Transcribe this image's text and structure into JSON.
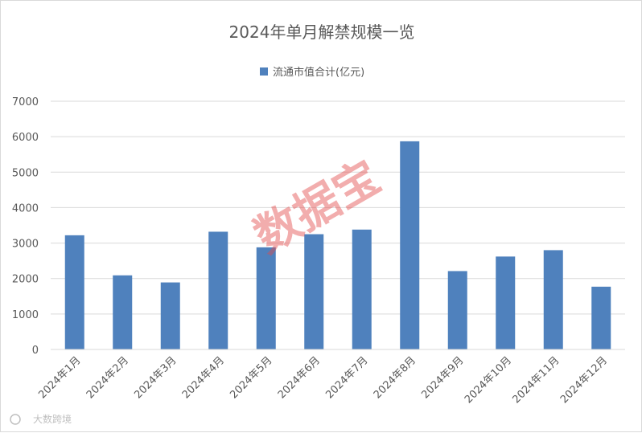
{
  "chart_data": {
    "type": "bar",
    "title": "2024年单月解禁规模一览",
    "categories": [
      "2024年1月",
      "2024年2月",
      "2024年3月",
      "2024年4月",
      "2024年5月",
      "2024年6月",
      "2024年7月",
      "2024年8月",
      "2024年9月",
      "2024年10月",
      "2024年11月",
      "2024年12月"
    ],
    "series": [
      {
        "name": "流通市值合计(亿元)",
        "values": [
          3220,
          2090,
          1890,
          3320,
          2880,
          3250,
          3380,
          5870,
          2210,
          2620,
          2800,
          1770
        ]
      }
    ],
    "ylim": [
      0,
      7000
    ],
    "yticks": [
      0,
      1000,
      2000,
      3000,
      4000,
      5000,
      6000,
      7000
    ],
    "grid": true,
    "legend_position": "top-center",
    "bar_color": "#4f81bd"
  },
  "watermark": "数据宝",
  "source_logo": "大数跨境"
}
